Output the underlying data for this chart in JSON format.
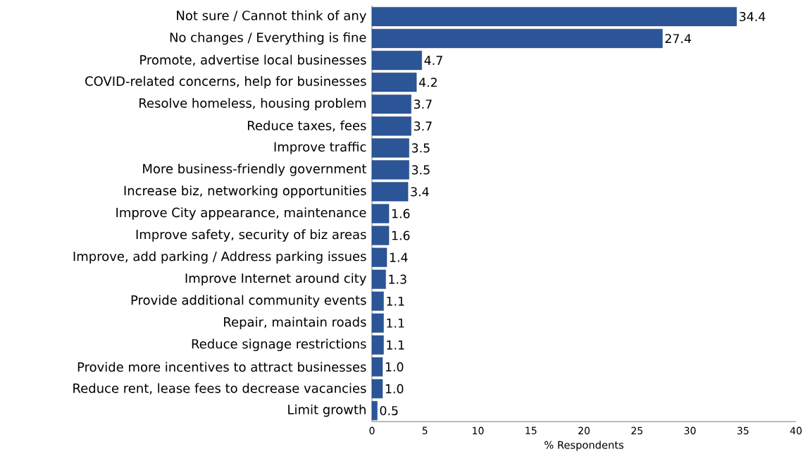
{
  "chart_data": {
    "type": "bar",
    "orientation": "horizontal",
    "xlabel": "% Respondents",
    "categories": [
      "Not sure / Cannot think of any",
      "No changes / Everything is fine",
      "Promote, advertise local businesses",
      "COVID-related concerns, help for businesses",
      "Resolve homeless, housing problem",
      "Reduce taxes, fees",
      "Improve traffic",
      "More business-friendly government",
      "Increase biz, networking opportunities",
      "Improve City appearance, maintenance",
      "Improve safety, security of biz areas",
      "Improve, add parking / Address parking issues",
      "Improve Internet around city",
      "Provide additional community events",
      "Repair, maintain roads",
      "Reduce signage restrictions",
      "Provide more incentives to attract businesses",
      "Reduce rent, lease fees to decrease vacancies",
      "Limit growth"
    ],
    "values": [
      34.4,
      27.4,
      4.7,
      4.2,
      3.7,
      3.7,
      3.5,
      3.5,
      3.4,
      1.6,
      1.6,
      1.4,
      1.3,
      1.1,
      1.1,
      1.1,
      1.0,
      1.0,
      0.5
    ],
    "color": "#2b5597",
    "xlim": [
      0,
      40
    ],
    "xticks": [
      0,
      5,
      10,
      15,
      20,
      25,
      30,
      35,
      40
    ],
    "value_labels": [
      "34.4",
      "27.4",
      "4.7",
      "4.2",
      "3.7",
      "3.7",
      "3.5",
      "3.5",
      "3.4",
      "1.6",
      "1.6",
      "1.4",
      "1.3",
      "1.1",
      "1.1",
      "1.1",
      "1.0",
      "1.0",
      "0.5"
    ]
  }
}
